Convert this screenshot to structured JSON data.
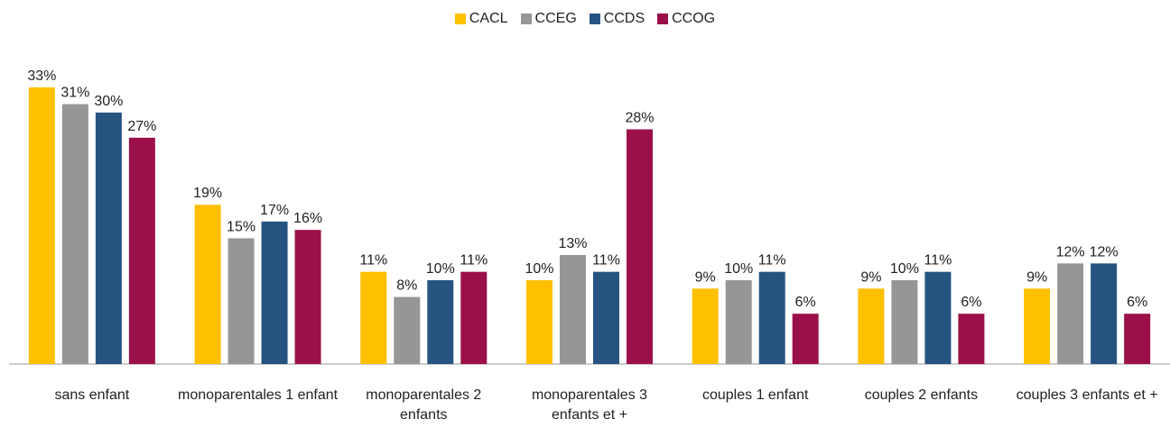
{
  "chart_data": {
    "type": "bar",
    "categories": [
      "sans enfant",
      "monoparentales 1 enfant",
      "monoparentales 2 enfants",
      "monoparentales 3 enfants et  +",
      "couples 1 enfant",
      "couples 2 enfants",
      "couples 3 enfants et +"
    ],
    "series": [
      {
        "name": "CACL",
        "color": "#ffc000",
        "values": [
          33,
          19,
          11,
          10,
          9,
          9,
          9
        ],
        "value_labels": [
          "33%",
          "19%",
          "11%",
          "10%",
          "9%",
          "9%",
          "9%"
        ]
      },
      {
        "name": "CCEG",
        "color": "#969696",
        "values": [
          31,
          15,
          8,
          13,
          10,
          10,
          12
        ],
        "value_labels": [
          "31%",
          "15%",
          "8%",
          "13%",
          "10%",
          "10%",
          "12%"
        ]
      },
      {
        "name": "CCDS",
        "color": "#255480",
        "values": [
          30,
          17,
          10,
          11,
          11,
          11,
          12
        ],
        "value_labels": [
          "30%",
          "17%",
          "10%",
          "11%",
          "11%",
          "11%",
          "12%"
        ]
      },
      {
        "name": "CCOG",
        "color": "#9b1048",
        "values": [
          27,
          16,
          11,
          28,
          6,
          6,
          6
        ],
        "value_labels": [
          "27%",
          "16%",
          "11%",
          "28%",
          "6%",
          "6%",
          "6%"
        ]
      }
    ],
    "legend": "top"
  }
}
